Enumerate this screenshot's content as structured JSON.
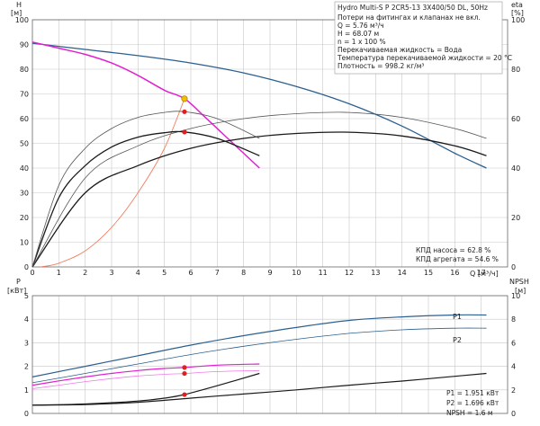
{
  "colors": {
    "pump_blue": "#2b5f8f",
    "magenta": "#e020d0",
    "light_magenta": "#f07ae8",
    "black": "#1a1a1a",
    "gray": "#555555",
    "system_curve": "#f08060",
    "operating_point": "#f0c000",
    "marker_red": "#e02020",
    "grid": "#c8c8c8"
  },
  "title": "Hydro Multi-S P 2CR5-13 3X400/50 DL, 50Hz",
  "info_lines": [
    "Потери на фитингах и клапанах не вкл.",
    "Q = 5.76 м³/ч",
    "H = 68.07 м",
    "n = 1 x 100 %",
    "Перекачиваемая жидкость = Вода",
    "Температура перекачиваемой жидкости = 20 °C",
    "Плотность = 998.2 кг/м³"
  ],
  "efficiency_text": [
    "КПД насоса = 62.8 %",
    "КПД агрегата = 54.6 %"
  ],
  "power_text": [
    "P1 = 1.951 кВт",
    "P2 = 1.696 кВт",
    "NPSH = 1.6 м"
  ],
  "axis_labels": {
    "h_label": "H",
    "h_unit": "[м]",
    "eta_label": "eta",
    "eta_unit": "[%]",
    "p_label": "P",
    "p_unit": "[кВт]",
    "npsh_label": "NPSH",
    "npsh_unit": "[м]",
    "q_label": "Q [м³/ч]"
  },
  "chart_data": [
    {
      "type": "line",
      "panel": "head_and_efficiency",
      "x_label": "Q [м³/ч]",
      "xlim": [
        0,
        18
      ],
      "x_ticks": [
        0,
        1,
        2,
        3,
        4,
        5,
        6,
        7,
        8,
        9,
        10,
        11,
        12,
        13,
        14,
        15,
        16,
        17
      ],
      "ylabel_left": "H [м]",
      "ylim_left": [
        0,
        100
      ],
      "y_ticks_left": [
        0,
        10,
        20,
        30,
        40,
        50,
        60,
        70,
        80,
        90,
        100
      ],
      "ylabel_right": "eta [%]",
      "ylim_right": [
        0,
        100
      ],
      "y_ticks_right": [
        0,
        20,
        40,
        60,
        80,
        100
      ],
      "grid": true,
      "series": [
        {
          "axis": "left",
          "color": "pump_blue",
          "width": 1.3,
          "x": [
            0,
            2,
            4,
            6,
            8,
            10,
            12,
            14,
            16,
            17.2
          ],
          "y": [
            90.5,
            88,
            85.5,
            82.5,
            78.5,
            73,
            66,
            57,
            46,
            40
          ]
        },
        {
          "axis": "left",
          "color": "magenta",
          "width": 1.5,
          "x": [
            0,
            1,
            2,
            3,
            4,
            5,
            5.76,
            6.5,
            7.5,
            8.6
          ],
          "y": [
            91,
            88.5,
            86,
            82.5,
            77.5,
            71.5,
            68.07,
            61,
            51,
            40
          ]
        },
        {
          "axis": "left",
          "color": "system_curve",
          "width": 0.9,
          "x": [
            0.3,
            1,
            2,
            3,
            4,
            5,
            5.76
          ],
          "y": [
            0,
            1.5,
            6.5,
            16,
            30,
            48,
            68.07
          ]
        },
        {
          "axis": "right",
          "color": "black",
          "width": 1.3,
          "x": [
            0,
            2,
            4,
            6,
            8,
            10,
            12,
            14,
            16,
            17.2
          ],
          "y": [
            0,
            30,
            41,
            48,
            52,
            54,
            54.5,
            53,
            49,
            45
          ]
        },
        {
          "axis": "right",
          "color": "gray",
          "width": 0.8,
          "x": [
            0,
            2,
            4,
            6,
            8,
            10,
            12,
            14,
            16,
            17.2
          ],
          "y": [
            0,
            36,
            49,
            56,
            60,
            62,
            62.5,
            60.5,
            56,
            52
          ]
        },
        {
          "axis": "right",
          "color": "black",
          "width": 1.3,
          "x": [
            0,
            1,
            2,
            3,
            4,
            5,
            5.76,
            7,
            8.6
          ],
          "y": [
            0,
            28,
            41,
            48.5,
            52.5,
            54.3,
            54.6,
            52,
            45
          ]
        },
        {
          "axis": "right",
          "color": "gray",
          "width": 0.8,
          "x": [
            0,
            1,
            2,
            3,
            4,
            5,
            5.76,
            7,
            8.6
          ],
          "y": [
            0,
            33,
            48,
            56,
            60.5,
            62.5,
            62.8,
            60,
            52
          ]
        }
      ],
      "points": [
        {
          "axis": "left",
          "x": 5.76,
          "y": 68.07,
          "color": "operating_point"
        },
        {
          "axis": "right",
          "x": 5.76,
          "y": 62.8,
          "color": "marker_red"
        },
        {
          "axis": "right",
          "x": 5.76,
          "y": 54.6,
          "color": "marker_red"
        }
      ]
    },
    {
      "type": "line",
      "panel": "power_and_npsh",
      "xlim": [
        0,
        18
      ],
      "ylabel_left": "P [кВт]",
      "ylim_left": [
        0,
        5
      ],
      "y_ticks_left": [
        0,
        1,
        2,
        3,
        4,
        5
      ],
      "ylabel_right": "NPSH [м]",
      "ylim_right": [
        0,
        10
      ],
      "y_ticks_right": [
        0,
        2,
        4,
        6,
        8,
        10
      ],
      "grid": true,
      "series": [
        {
          "name": "P1",
          "axis": "left",
          "color": "pump_blue",
          "width": 1.2,
          "x": [
            0,
            2,
            4,
            6,
            8,
            10,
            12,
            14,
            16,
            17.2
          ],
          "y": [
            1.55,
            2.0,
            2.45,
            2.9,
            3.3,
            3.65,
            3.95,
            4.1,
            4.18,
            4.18
          ]
        },
        {
          "name": "P2",
          "axis": "left",
          "color": "pump_blue",
          "width": 0.8,
          "x": [
            0,
            2,
            4,
            6,
            8,
            10,
            12,
            14,
            16,
            17.2
          ],
          "y": [
            1.3,
            1.7,
            2.1,
            2.5,
            2.85,
            3.15,
            3.4,
            3.55,
            3.62,
            3.62
          ]
        },
        {
          "axis": "left",
          "color": "magenta",
          "width": 1.2,
          "x": [
            0,
            1,
            2,
            3,
            4,
            5,
            5.76,
            7,
            8.6
          ],
          "y": [
            1.2,
            1.38,
            1.55,
            1.7,
            1.82,
            1.91,
            1.951,
            2.05,
            2.1
          ]
        },
        {
          "axis": "left",
          "color": "light_magenta",
          "width": 0.8,
          "x": [
            0,
            1,
            2,
            3,
            4,
            5,
            5.76,
            7,
            8.6
          ],
          "y": [
            1.05,
            1.2,
            1.35,
            1.48,
            1.59,
            1.66,
            1.696,
            1.78,
            1.82
          ]
        },
        {
          "axis": "right",
          "color": "black",
          "width": 1.2,
          "x": [
            0,
            2,
            4,
            6,
            8,
            10,
            12,
            14,
            16,
            17.2
          ],
          "y": [
            0.7,
            0.75,
            0.95,
            1.3,
            1.65,
            2.0,
            2.4,
            2.75,
            3.15,
            3.4
          ]
        },
        {
          "axis": "right",
          "color": "black",
          "width": 1.2,
          "x": [
            0,
            2,
            4,
            5,
            5.76,
            7,
            8.6
          ],
          "y": [
            0.7,
            0.8,
            1.05,
            1.3,
            1.6,
            2.35,
            3.4
          ]
        }
      ],
      "points": [
        {
          "axis": "left",
          "x": 5.76,
          "y": 1.951,
          "color": "marker_red"
        },
        {
          "axis": "left",
          "x": 5.76,
          "y": 1.696,
          "color": "marker_red"
        },
        {
          "axis": "right",
          "x": 5.76,
          "y": 1.6,
          "color": "marker_red"
        }
      ],
      "series_labels": [
        "P1",
        "P2"
      ]
    }
  ]
}
